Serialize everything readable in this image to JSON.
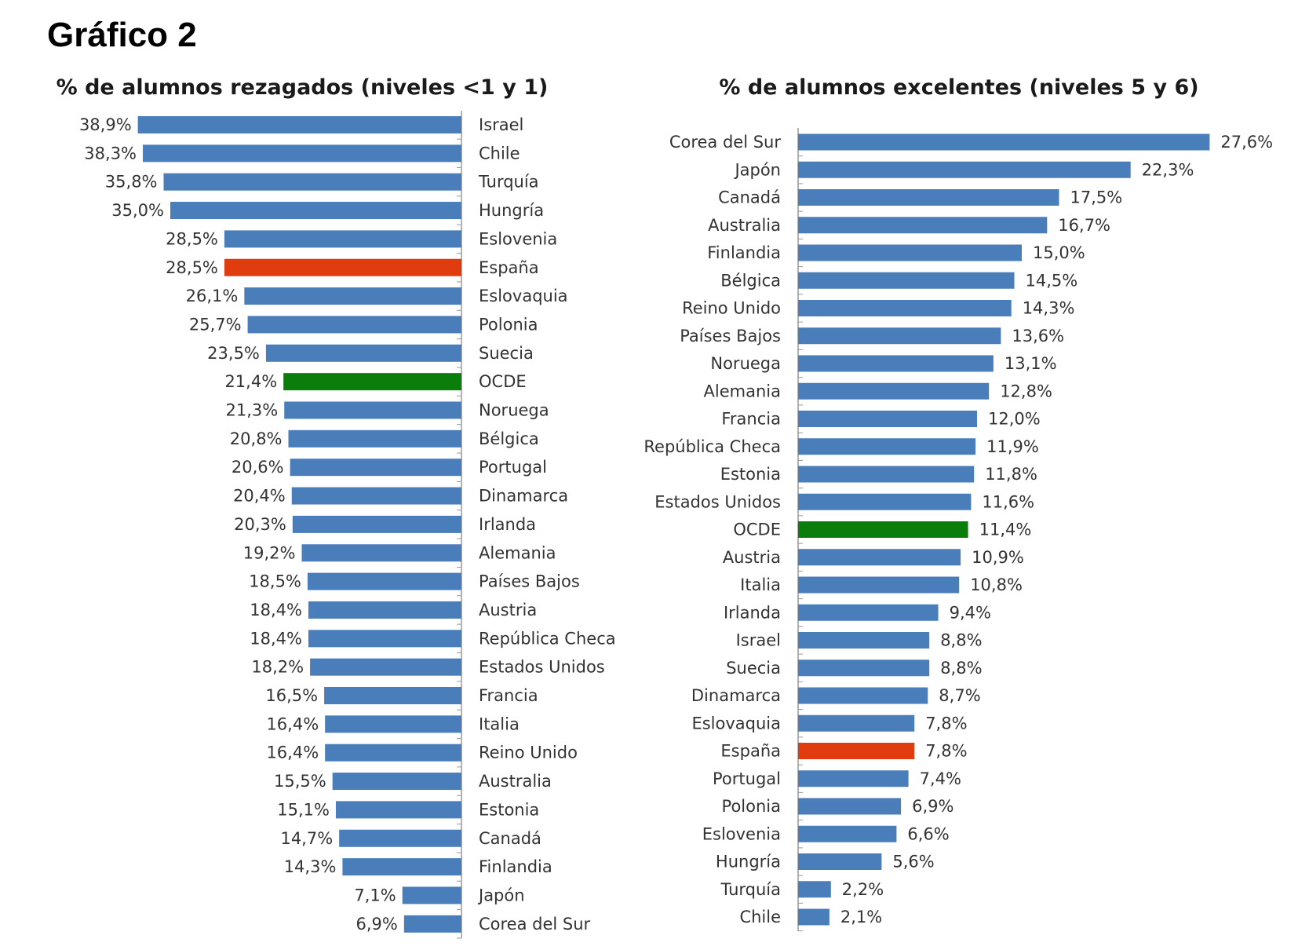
{
  "heading": "Gráfico 2",
  "colors": {
    "default": "#4a7ebb",
    "spain": "#e03c10",
    "oecd": "#0a7d0a"
  },
  "chart_data": [
    {
      "type": "bar",
      "orientation": "horizontal",
      "title": "% de alumnos rezagados (niveles <1 y 1)",
      "categories": [
        "Israel",
        "Chile",
        "Turquía",
        "Hungría",
        "Eslovenia",
        "España",
        "Eslovaquia",
        "Polonia",
        "Suecia",
        "OCDE",
        "Noruega",
        "Bélgica",
        "Portugal",
        "Dinamarca",
        "Irlanda",
        "Alemania",
        "Países Bajos",
        "Austria",
        "República Checa",
        "Estados Unidos",
        "Francia",
        "Italia",
        "Reino Unido",
        "Australia",
        "Estonia",
        "Canadá",
        "Finlandia",
        "Japón",
        "Corea del Sur"
      ],
      "values": [
        38.9,
        38.3,
        35.8,
        35.0,
        28.5,
        28.5,
        26.1,
        25.7,
        23.5,
        21.4,
        21.3,
        20.8,
        20.6,
        20.4,
        20.3,
        19.2,
        18.5,
        18.4,
        18.4,
        18.2,
        16.5,
        16.4,
        16.4,
        15.5,
        15.1,
        14.7,
        14.3,
        7.1,
        6.9
      ],
      "value_labels": [
        "38,9%",
        "38,3%",
        "35,8%",
        "35,0%",
        "28,5%",
        "28,5%",
        "26,1%",
        "25,7%",
        "23,5%",
        "21,4%",
        "21,3%",
        "20,8%",
        "20,6%",
        "20,4%",
        "20,3%",
        "19,2%",
        "18,5%",
        "18,4%",
        "18,4%",
        "18,2%",
        "16,5%",
        "16,4%",
        "16,4%",
        "15,5%",
        "15,1%",
        "14,7%",
        "14,3%",
        "7,1%",
        "6,9%"
      ],
      "highlight": {
        "España": "spain",
        "OCDE": "oecd"
      },
      "bars_grow_from": "right"
    },
    {
      "type": "bar",
      "orientation": "horizontal",
      "title": "% de alumnos excelentes (niveles 5 y 6)",
      "categories": [
        "Corea del Sur",
        "Japón",
        "Canadá",
        "Australia",
        "Finlandia",
        "Bélgica",
        "Reino Unido",
        "Países Bajos",
        "Noruega",
        "Alemania",
        "Francia",
        "República Checa",
        "Estonia",
        "Estados Unidos",
        "OCDE",
        "Austria",
        "Italia",
        "Irlanda",
        "Israel",
        "Suecia",
        "Dinamarca",
        "Eslovaquia",
        "España",
        "Portugal",
        "Polonia",
        "Eslovenia",
        "Hungría",
        "Turquía",
        "Chile"
      ],
      "values": [
        27.6,
        22.3,
        17.5,
        16.7,
        15.0,
        14.5,
        14.3,
        13.6,
        13.1,
        12.8,
        12.0,
        11.9,
        11.8,
        11.6,
        11.4,
        10.9,
        10.8,
        9.4,
        8.8,
        8.8,
        8.7,
        7.8,
        7.8,
        7.4,
        6.9,
        6.6,
        5.6,
        2.2,
        2.1
      ],
      "value_labels": [
        "27,6%",
        "22,3%",
        "17,5%",
        "16,7%",
        "15,0%",
        "14,5%",
        "14,3%",
        "13,6%",
        "13,1%",
        "12,8%",
        "12,0%",
        "11,9%",
        "11,8%",
        "11,6%",
        "11,4%",
        "10,9%",
        "10,8%",
        "9,4%",
        "8,8%",
        "8,8%",
        "8,7%",
        "7,8%",
        "7,8%",
        "7,4%",
        "6,9%",
        "6,6%",
        "5,6%",
        "2,2%",
        "2,1%"
      ],
      "highlight": {
        "España": "spain",
        "OCDE": "oecd"
      },
      "bars_grow_from": "left"
    }
  ]
}
